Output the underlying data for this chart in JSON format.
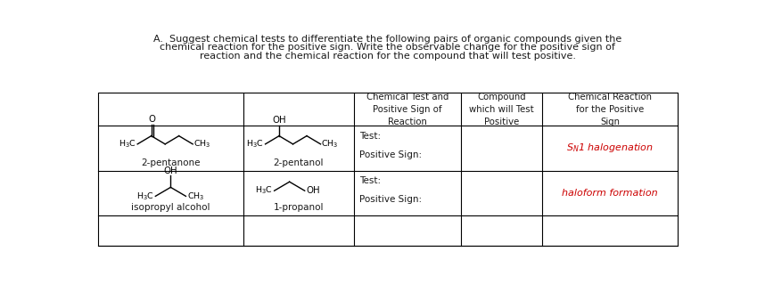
{
  "title_line1": "A.  Suggest chemical tests to differentiate the following pairs of organic compounds given the",
  "title_line2": "chemical reaction for the positive sign. Write the observable change for the positive sign of",
  "title_line3": "reaction and the chemical reaction for the compound that will test positive.",
  "col_headers": [
    "Chemical Test and\nPositive Sign of\nReaction",
    "Compound\nwhich will Test\nPositive",
    "Chemical Reaction\nfor the Positive\nSign"
  ],
  "row1_label1": "2-pentanone",
  "row1_label2": "2-pentanol",
  "row2_label1": "isopropyl alcohol",
  "row2_label2": "1-propanol",
  "sn1_text": "S$_N$1 halogenation",
  "haloform_text": "haloform formation",
  "bg_color": "#ffffff",
  "text_color": "#1a1a1a",
  "red_color": "#cc0000",
  "grid_color": "#000000",
  "title_fontsize": 8.0,
  "body_fontsize": 7.5,
  "label_fontsize": 7.5,
  "struct_fontsize": 6.8
}
